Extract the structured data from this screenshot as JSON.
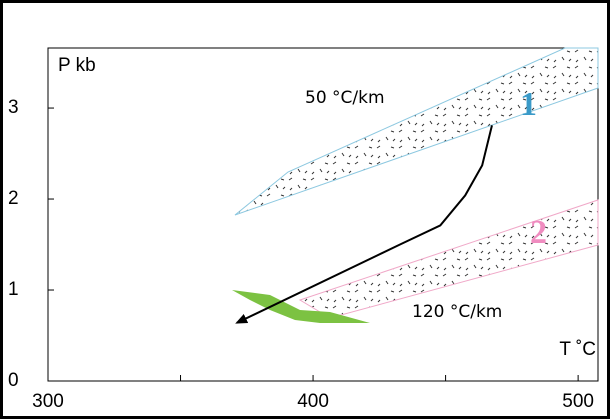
{
  "chart_data": {
    "type": "line",
    "x_label": "T ˚C",
    "y_label": "P kb",
    "annotations": [
      "50 °C/km",
      "120 °C/km",
      "1",
      "2"
    ],
    "series": [
      {
        "color": "#000000",
        "x": [
          467.5,
          463.8,
          457.4,
          448.0,
          432.8,
          371.3
        ],
        "values": [
          2.81,
          2.37,
          2.04,
          1.71,
          1.5,
          0.64
        ]
      }
    ],
    "xlim": [
      300,
      507.5
    ],
    "xticks": [
      300,
      400,
      500
    ],
    "xminorticks": [
      350,
      450
    ],
    "ylim": [
      0,
      3.66
    ],
    "yticks": [
      0,
      1,
      2,
      3
    ]
  }
}
